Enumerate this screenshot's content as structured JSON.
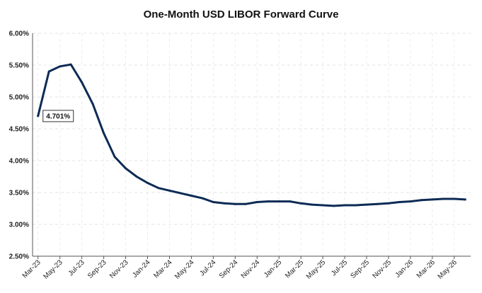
{
  "chart_data": {
    "type": "line",
    "title": "One-Month USD LIBOR Forward Curve",
    "xlabel": "",
    "ylabel": "",
    "ylim": [
      2.5,
      6.0
    ],
    "y_ticks": [
      "2.50%",
      "3.00%",
      "3.50%",
      "4.00%",
      "4.50%",
      "5.00%",
      "5.50%",
      "6.00%"
    ],
    "y_tick_values": [
      2.5,
      3.0,
      3.5,
      4.0,
      4.5,
      5.0,
      5.5,
      6.0
    ],
    "x_ticks": [
      "Mar-23",
      "May-23",
      "Jul-23",
      "Sep-23",
      "Nov-23",
      "Jan-24",
      "Mar-24",
      "May-24",
      "Jul-24",
      "Sep-24",
      "Nov-24",
      "Jan-25",
      "Mar-25",
      "May-25",
      "Jul-25",
      "Sep-25",
      "Nov-25",
      "Jan-26",
      "Mar-26",
      "May-26"
    ],
    "grid": true,
    "line_color": "#0d2b55",
    "annotation": {
      "text": "4.701%",
      "x_index": 0,
      "value": 4.701
    },
    "x_months": [
      "Mar-23",
      "Apr-23",
      "May-23",
      "Jun-23",
      "Jul-23",
      "Aug-23",
      "Sep-23",
      "Oct-23",
      "Nov-23",
      "Dec-23",
      "Jan-24",
      "Feb-24",
      "Mar-24",
      "Apr-24",
      "May-24",
      "Jun-24",
      "Jul-24",
      "Aug-24",
      "Sep-24",
      "Oct-24",
      "Nov-24",
      "Dec-24",
      "Jan-25",
      "Feb-25",
      "Mar-25",
      "Apr-25",
      "May-25",
      "Jun-25",
      "Jul-25",
      "Aug-25",
      "Sep-25",
      "Oct-25",
      "Nov-25",
      "Dec-25",
      "Jan-26",
      "Feb-26",
      "Mar-26",
      "Apr-26",
      "May-26",
      "Jun-26"
    ],
    "series": [
      {
        "values": [
          4.701,
          5.4,
          5.48,
          5.51,
          5.23,
          4.89,
          4.43,
          4.06,
          3.88,
          3.75,
          3.65,
          3.57,
          3.53,
          3.49,
          3.45,
          3.41,
          3.35,
          3.33,
          3.32,
          3.32,
          3.35,
          3.36,
          3.36,
          3.36,
          3.33,
          3.31,
          3.3,
          3.29,
          3.3,
          3.3,
          3.31,
          3.32,
          3.33,
          3.35,
          3.36,
          3.38,
          3.39,
          3.4,
          3.4,
          3.39
        ]
      }
    ]
  }
}
